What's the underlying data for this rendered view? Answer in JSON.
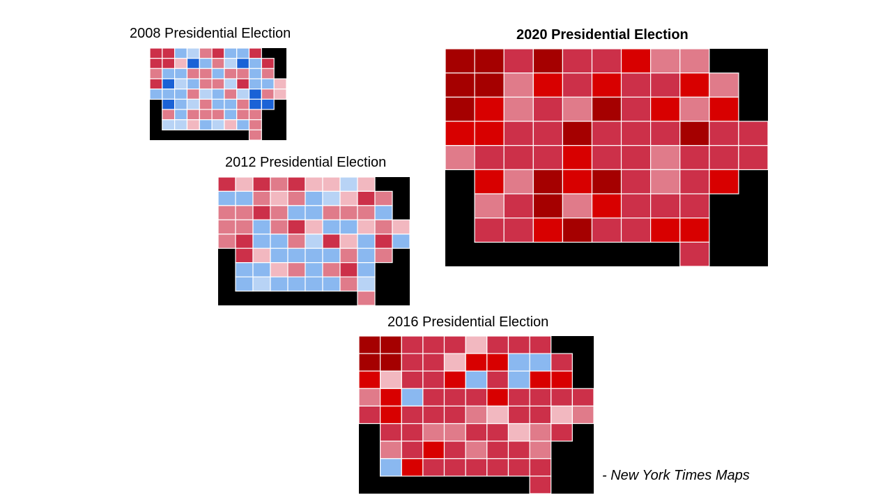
{
  "maps": [
    {
      "id": "m2008",
      "title": "2008 Presidential Election",
      "bold": false,
      "palette": "dem"
    },
    {
      "id": "m2012",
      "title": "2012 Presidential Election",
      "bold": false,
      "palette": "mixed"
    },
    {
      "id": "m2020",
      "title": "2020 Presidential Election",
      "bold": true,
      "palette": "rep"
    },
    {
      "id": "m2016",
      "title": "2016 Presidential Election",
      "bold": false,
      "palette": "rep2016"
    }
  ],
  "credit": "- New York Times Maps",
  "colors": {
    "dark_red": "#a50000",
    "red": "#d80000",
    "medium_red": "#cc3049",
    "light_red": "#e07b8a",
    "pink": "#f2b8c0",
    "light_blue": "#b8d3f5",
    "blue": "#8ab8f0",
    "dark_blue": "#1a62d6",
    "background": "#000000",
    "border": "#ffffff"
  }
}
